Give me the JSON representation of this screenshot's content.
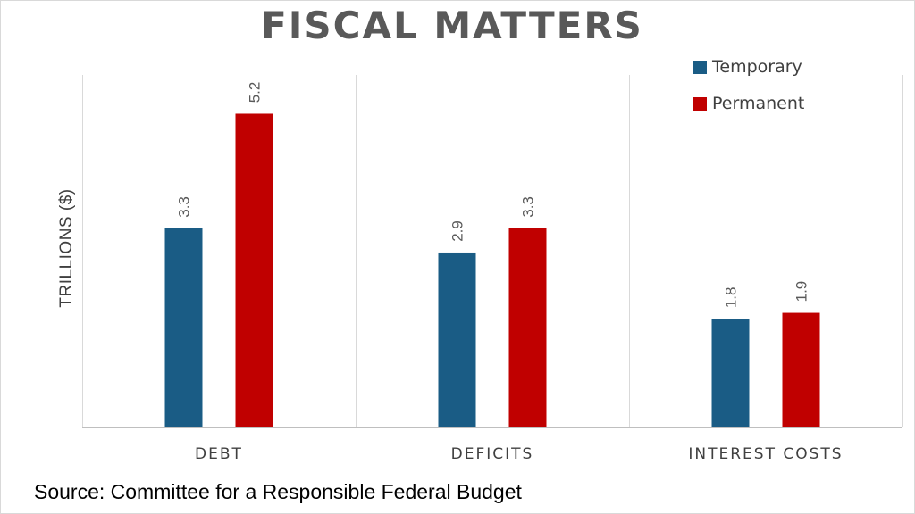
{
  "chart_data": {
    "type": "bar",
    "title": "FISCAL MATTERS",
    "xlabel": "",
    "ylabel": "TRILLIONS ($)",
    "categories": [
      "DEBT",
      "DEFICITS",
      "INTEREST COSTS"
    ],
    "series": [
      {
        "name": "Temporary",
        "color": "#1a5c85",
        "values": [
          3.3,
          2.9,
          1.8
        ],
        "labels": [
          "3.3",
          "2.9",
          "1.8"
        ]
      },
      {
        "name": "Permanent",
        "color": "#c00000",
        "values": [
          5.2,
          3.3,
          1.9
        ],
        "labels": [
          "5.2",
          "3.3",
          "1.9"
        ]
      }
    ],
    "ylim": [
      0,
      5.5
    ],
    "grid": false,
    "legend": "top-right"
  },
  "source": "Source: Committee for a Responsible Federal Budget"
}
